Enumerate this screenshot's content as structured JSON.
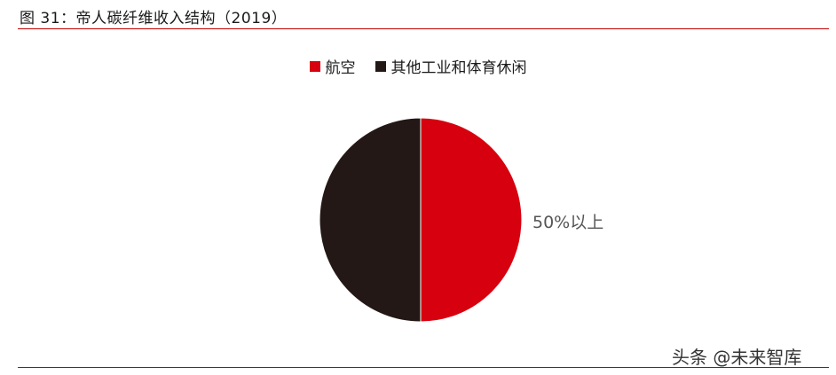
{
  "figure_title": "图 31：帝人碳纤维收入结构（2019）",
  "watermark": "头条 @未来智库",
  "chart_data": {
    "type": "pie",
    "title": "图 31：帝人碳纤维收入结构（2019）",
    "legend_position": "top-center",
    "slices": [
      {
        "name": "航空",
        "value": 50,
        "label": "50%以上",
        "color": "#d7000f"
      },
      {
        "name": "其他工业和体育休闲",
        "value": 50,
        "label": "",
        "color": "#231815"
      }
    ]
  }
}
